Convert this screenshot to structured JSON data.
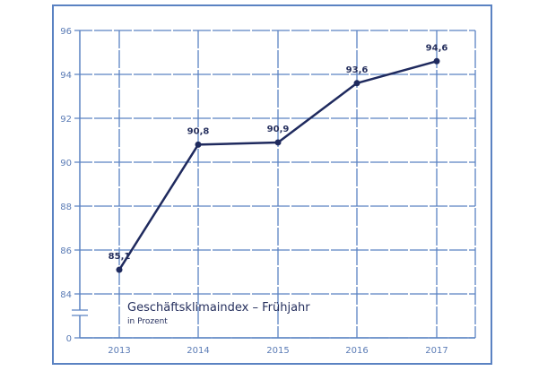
{
  "chart_data": {
    "type": "line",
    "title": "Geschäftsklimaindex – Frühjahr",
    "subtitle": "in Prozent",
    "categories": [
      "2013",
      "2014",
      "2015",
      "2016",
      "2017"
    ],
    "values": [
      85.1,
      90.8,
      90.9,
      93.6,
      94.6
    ],
    "data_labels": [
      "85,1",
      "90,8",
      "90,9",
      "93,6",
      "94,6"
    ],
    "y_ticks": [
      {
        "value": 96,
        "label": "96"
      },
      {
        "value": 94,
        "label": "94"
      },
      {
        "value": 92,
        "label": "92"
      },
      {
        "value": 90,
        "label": "90"
      },
      {
        "value": 88,
        "label": "88"
      },
      {
        "value": 86,
        "label": "86"
      },
      {
        "value": 84,
        "label": "84"
      },
      {
        "value": 0,
        "label": "0"
      }
    ],
    "ylim": [
      84,
      96
    ],
    "y_axis_break": true,
    "grid": true,
    "colors": {
      "line": "#1f2a5e",
      "grid": "#5a82c2",
      "frame": "#5a82c2"
    }
  }
}
